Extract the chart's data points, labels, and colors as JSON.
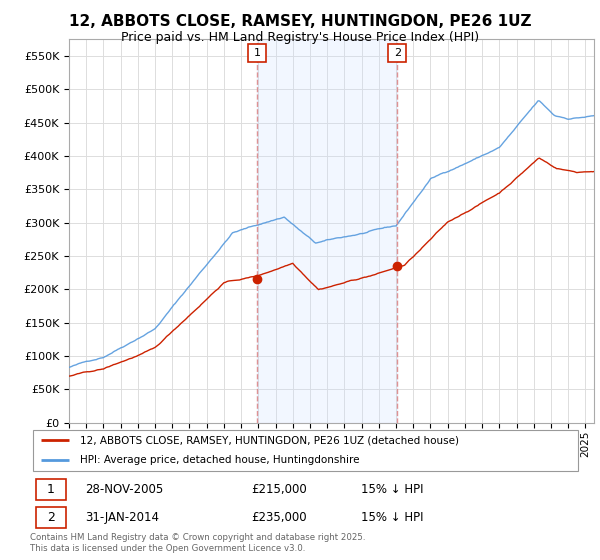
{
  "title": "12, ABBOTS CLOSE, RAMSEY, HUNTINGDON, PE26 1UZ",
  "subtitle": "Price paid vs. HM Land Registry's House Price Index (HPI)",
  "ylim": [
    0,
    575000
  ],
  "yticks": [
    0,
    50000,
    100000,
    150000,
    200000,
    250000,
    300000,
    350000,
    400000,
    450000,
    500000,
    550000
  ],
  "ytick_labels": [
    "£0",
    "£50K",
    "£100K",
    "£150K",
    "£200K",
    "£250K",
    "£300K",
    "£350K",
    "£400K",
    "£450K",
    "£500K",
    "£550K"
  ],
  "xlim_start": 1995.0,
  "xlim_end": 2025.5,
  "transaction1_x": 2005.92,
  "transaction1_y": 215000,
  "transaction1_label": "1",
  "transaction1_date": "28-NOV-2005",
  "transaction1_price": "£215,000",
  "transaction1_hpi": "15% ↓ HPI",
  "transaction2_x": 2014.08,
  "transaction2_y": 235000,
  "transaction2_label": "2",
  "transaction2_date": "31-JAN-2014",
  "transaction2_price": "£235,000",
  "transaction2_hpi": "15% ↓ HPI",
  "line_color_red": "#cc2200",
  "line_color_blue": "#5599dd",
  "shade_color": "#cce0ff",
  "vline_color": "#dd8888",
  "grid_color": "#dddddd",
  "background_color": "#ffffff",
  "legend_label_red": "12, ABBOTS CLOSE, RAMSEY, HUNTINGDON, PE26 1UZ (detached house)",
  "legend_label_blue": "HPI: Average price, detached house, Huntingdonshire",
  "footer": "Contains HM Land Registry data © Crown copyright and database right 2025.\nThis data is licensed under the Open Government Licence v3.0.",
  "title_fontsize": 11,
  "subtitle_fontsize": 9
}
